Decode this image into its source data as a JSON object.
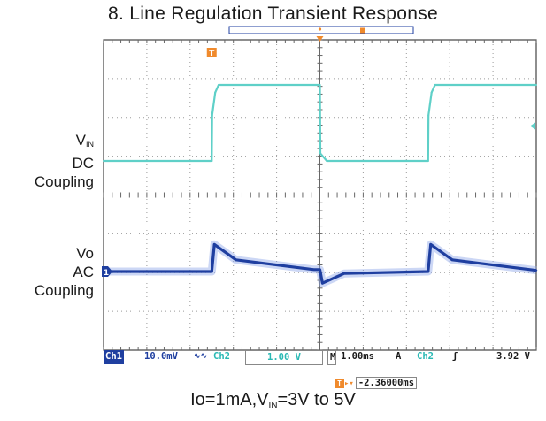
{
  "title": "8. Line Regulation Transient Response",
  "labels": {
    "vin_v": "V",
    "vin_sub": "IN",
    "vin_line2": "DC",
    "vin_line3": "Coupling",
    "vo_line1": "Vo",
    "vo_line2": "AC",
    "vo_line3": "Coupling"
  },
  "markers": {
    "trigger": "T",
    "ch1": "1"
  },
  "status_bar": {
    "ch1_tag": "Ch1",
    "ch1_scale": "10.0mV",
    "ch1_coupling_glyph": "∿∿",
    "ch2_tag": "Ch2",
    "ch2_scale": "1.00 V",
    "time_tag": "M",
    "timebase": "1.00ms",
    "trig_mode": "A",
    "trig_source": "Ch2",
    "trig_slope_glyph": "ʃ",
    "trig_level": "3.92 V"
  },
  "cursor_readout": {
    "icon": "T",
    "arrow": "▸▾",
    "value": "-2.36000ms"
  },
  "condition": {
    "part1": "Io=1mA,V",
    "sub": "IN",
    "part2": "=3V to 5V"
  },
  "colors": {
    "ch1": "#1f3fa0",
    "ch2": "#5fd0c8",
    "trigger": "#f08a2c",
    "grid": "#9a9a9a"
  },
  "chart_data": {
    "type": "line",
    "title": "8. Line Regulation Transient Response",
    "x_unit": "ms",
    "x_scale": "1.00ms/div",
    "xlim": [
      -4.86,
      5.14
    ],
    "grid": true,
    "series": [
      {
        "name": "Ch2",
        "scale": "1.00 V/div",
        "coupling": "DC",
        "x": [
          -4.86,
          -2.36,
          -2.35,
          -2.28,
          -2.2,
          0.14,
          0.15,
          0.3,
          2.64,
          2.65,
          2.72,
          2.8,
          5.14
        ],
        "y": [
          3.0,
          3.0,
          4.2,
          4.8,
          5.0,
          5.0,
          3.2,
          3.0,
          3.0,
          4.2,
          4.8,
          5.0,
          5.0
        ]
      },
      {
        "name": "Ch1",
        "scale": "10.0mV/div",
        "coupling": "AC",
        "x": [
          -4.86,
          -2.36,
          -2.3,
          -1.8,
          0.0,
          0.14,
          0.2,
          0.7,
          2.64,
          2.7,
          3.2,
          5.14
        ],
        "y": [
          0.0,
          0.0,
          7.0,
          3.0,
          0.5,
          0.5,
          -3.0,
          -0.5,
          0.0,
          7.0,
          3.0,
          0.3
        ]
      }
    ]
  }
}
